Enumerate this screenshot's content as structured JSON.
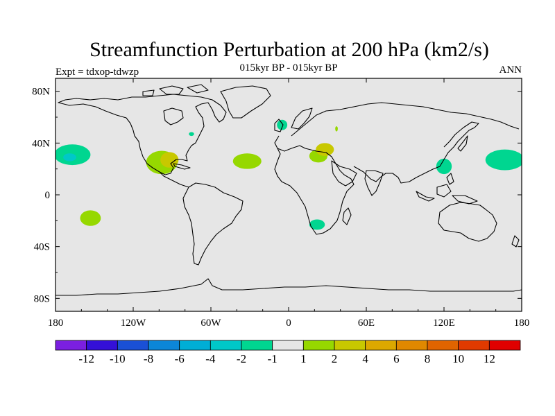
{
  "chart_data": {
    "type": "heatmap",
    "title": "Streamfunction Perturbation at 200 hPa (km2/s)",
    "subtitle_center": "015kyr BP - 015kyr BP",
    "subtitle_left": "Expt = tdxop-tdwzp",
    "subtitle_right": "ANN",
    "map_projection": "cylindrical equidistant",
    "xlim": [
      -180,
      180
    ],
    "ylim": [
      -90,
      90
    ],
    "x_ticks": [
      {
        "value": -180,
        "label": "180"
      },
      {
        "value": -120,
        "label": "120W"
      },
      {
        "value": -60,
        "label": "60W"
      },
      {
        "value": 0,
        "label": "0"
      },
      {
        "value": 60,
        "label": "60E"
      },
      {
        "value": 120,
        "label": "120E"
      },
      {
        "value": 180,
        "label": "180"
      }
    ],
    "y_ticks": [
      {
        "value": 80,
        "label": "80N"
      },
      {
        "value": 40,
        "label": "40N"
      },
      {
        "value": 0,
        "label": "0"
      },
      {
        "value": -40,
        "label": "40S"
      },
      {
        "value": -80,
        "label": "80S"
      }
    ],
    "background_color": "#e6e6e6",
    "colorbar": {
      "levels": [
        "-12",
        "-10",
        "-8",
        "-6",
        "-4",
        "-2",
        "-1",
        "1",
        "2",
        "4",
        "6",
        "8",
        "10",
        "12"
      ],
      "colors": [
        "#7b1fe0",
        "#3410d8",
        "#1a50d6",
        "#0c86d8",
        "#00aed6",
        "#00c8c8",
        "#00d690",
        "#e6e6e6",
        "#96d800",
        "#c8c800",
        "#dca800",
        "#e08800",
        "#e06400",
        "#e03a00",
        "#e00000"
      ]
    },
    "anomalies": [
      {
        "lon": -167,
        "lat": 31,
        "rlon": 14,
        "rlat": 8,
        "color": "#00d690"
      },
      {
        "lon": -169,
        "lat": 29,
        "rlon": 5,
        "rlat": 3,
        "color": "#00c8c8"
      },
      {
        "lon": -153,
        "lat": -18,
        "rlon": 8,
        "rlat": 6,
        "color": "#96d800"
      },
      {
        "lon": -98,
        "lat": 25,
        "rlon": 12,
        "rlat": 9,
        "color": "#96d800"
      },
      {
        "lon": -92,
        "lat": 27,
        "rlon": 7,
        "rlat": 6,
        "color": "#c8c800"
      },
      {
        "lon": -75,
        "lat": 47,
        "rlon": 2,
        "rlat": 1.5,
        "color": "#00d690"
      },
      {
        "lon": -32,
        "lat": 26,
        "rlon": 11,
        "rlat": 6,
        "color": "#96d800"
      },
      {
        "lon": -5,
        "lat": 54,
        "rlon": 4,
        "rlat": 4,
        "color": "#00d690"
      },
      {
        "lon": 23,
        "lat": 30,
        "rlon": 7,
        "rlat": 5,
        "color": "#96d800"
      },
      {
        "lon": 28,
        "lat": 35,
        "rlon": 7,
        "rlat": 5,
        "color": "#c8c800"
      },
      {
        "lon": 37,
        "lat": 51,
        "rlon": 1,
        "rlat": 2,
        "color": "#96d800"
      },
      {
        "lon": 22,
        "lat": -23,
        "rlon": 6,
        "rlat": 4,
        "color": "#00d690"
      },
      {
        "lon": 120,
        "lat": 22,
        "rlon": 6,
        "rlat": 6,
        "color": "#00d690"
      },
      {
        "lon": 167,
        "lat": 27,
        "rlon": 15,
        "rlat": 8,
        "color": "#00d690"
      }
    ]
  }
}
